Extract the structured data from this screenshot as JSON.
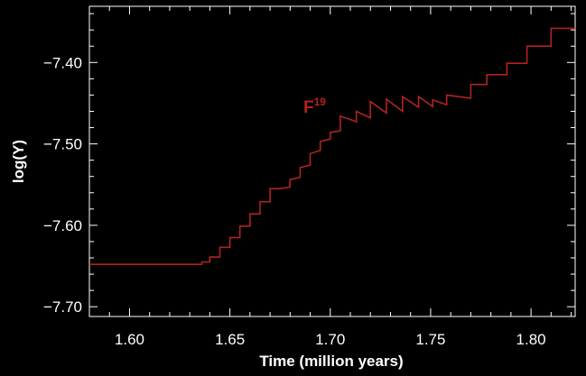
{
  "chart_data": {
    "type": "line",
    "title": "",
    "xlabel": "Time (million years)",
    "ylabel": "log(Y)",
    "xlim": [
      1.58,
      1.822
    ],
    "ylim": [
      -7.712,
      -7.331
    ],
    "x_ticks": [
      1.6,
      1.65,
      1.7,
      1.75,
      1.8
    ],
    "x_tick_labels": [
      "1.60",
      "1.65",
      "1.70",
      "1.75",
      "1.80"
    ],
    "y_ticks": [
      -7.4,
      -7.5,
      -7.6,
      -7.7
    ],
    "y_tick_labels": [
      "−7.40",
      "−7.50",
      "−7.60",
      "−7.70"
    ],
    "grid": false,
    "legend": "none",
    "colors": {
      "background": "#000000",
      "axes": "#ffffff",
      "series": "#b22222"
    },
    "series": [
      {
        "label_base": "F",
        "label_sup": "19",
        "label_at": [
          1.692,
          -7.455
        ],
        "points": [
          [
            1.58,
            -7.648
          ],
          [
            1.636,
            -7.648
          ],
          [
            1.636,
            -7.645
          ],
          [
            1.64,
            -7.645
          ],
          [
            1.64,
            -7.639
          ],
          [
            1.645,
            -7.639
          ],
          [
            1.645,
            -7.627
          ],
          [
            1.65,
            -7.627
          ],
          [
            1.65,
            -7.615
          ],
          [
            1.655,
            -7.615
          ],
          [
            1.655,
            -7.601
          ],
          [
            1.66,
            -7.601
          ],
          [
            1.66,
            -7.586
          ],
          [
            1.665,
            -7.586
          ],
          [
            1.665,
            -7.571
          ],
          [
            1.67,
            -7.571
          ],
          [
            1.67,
            -7.555
          ],
          [
            1.675,
            -7.555
          ],
          [
            1.68,
            -7.553
          ],
          [
            1.68,
            -7.544
          ],
          [
            1.685,
            -7.541
          ],
          [
            1.685,
            -7.529
          ],
          [
            1.69,
            -7.526
          ],
          [
            1.69,
            -7.512
          ],
          [
            1.695,
            -7.508
          ],
          [
            1.695,
            -7.497
          ],
          [
            1.7,
            -7.494
          ],
          [
            1.7,
            -7.486
          ],
          [
            1.705,
            -7.484
          ],
          [
            1.705,
            -7.466
          ],
          [
            1.71,
            -7.47
          ],
          [
            1.713,
            -7.473
          ],
          [
            1.713,
            -7.46
          ],
          [
            1.72,
            -7.468
          ],
          [
            1.72,
            -7.448
          ],
          [
            1.728,
            -7.462
          ],
          [
            1.728,
            -7.445
          ],
          [
            1.736,
            -7.46
          ],
          [
            1.736,
            -7.442
          ],
          [
            1.744,
            -7.455
          ],
          [
            1.744,
            -7.442
          ],
          [
            1.751,
            -7.454
          ],
          [
            1.751,
            -7.446
          ],
          [
            1.758,
            -7.452
          ],
          [
            1.758,
            -7.44
          ],
          [
            1.77,
            -7.444
          ],
          [
            1.77,
            -7.427
          ],
          [
            1.778,
            -7.427
          ],
          [
            1.778,
            -7.415
          ],
          [
            1.788,
            -7.415
          ],
          [
            1.788,
            -7.401
          ],
          [
            1.798,
            -7.401
          ],
          [
            1.798,
            -7.38
          ],
          [
            1.81,
            -7.38
          ],
          [
            1.81,
            -7.358
          ],
          [
            1.822,
            -7.358
          ]
        ]
      }
    ]
  }
}
